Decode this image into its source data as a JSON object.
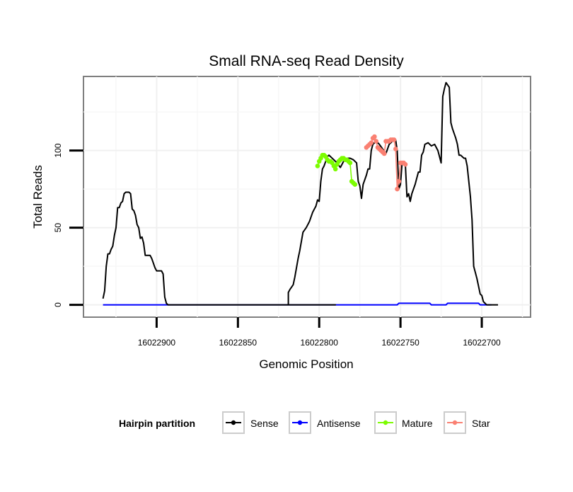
{
  "chart_data": {
    "type": "line",
    "title": "Small RNA-seq Read Density",
    "xlabel": "Genomic Position",
    "ylabel": "Total Reads",
    "x_reversed": true,
    "xlim": [
      16022945,
      16022670
    ],
    "ylim": [
      -8,
      148
    ],
    "x_ticks": [
      16022900,
      16022850,
      16022800,
      16022750,
      16022700
    ],
    "x_tick_labels": [
      "16022900",
      "16022850",
      "16022800",
      "16022750",
      "16022700"
    ],
    "y_ticks": [
      0,
      50,
      100
    ],
    "y_tick_labels": [
      "0",
      "50",
      "100"
    ],
    "grid": true,
    "legend": {
      "title": "Hairpin partition",
      "position": "bottom",
      "entries": [
        {
          "name": "Sense",
          "color": "#000000"
        },
        {
          "name": "Antisense",
          "color": "#0000ff"
        },
        {
          "name": "Mature",
          "color": "#7cfc00"
        },
        {
          "name": "Star",
          "color": "#fa8072"
        }
      ]
    },
    "series": [
      {
        "name": "Sense",
        "color": "#000000",
        "points": [
          [
            16022933,
            4
          ],
          [
            16022932,
            9
          ],
          [
            16022931,
            25
          ],
          [
            16022930,
            33
          ],
          [
            16022929,
            33
          ],
          [
            16022928,
            36
          ],
          [
            16022927,
            38
          ],
          [
            16022926,
            45
          ],
          [
            16022925,
            50
          ],
          [
            16022924,
            63
          ],
          [
            16022923,
            63
          ],
          [
            16022922,
            66
          ],
          [
            16022921,
            67
          ],
          [
            16022920,
            72
          ],
          [
            16022919,
            73
          ],
          [
            16022918,
            73
          ],
          [
            16022917,
            73
          ],
          [
            16022916,
            72
          ],
          [
            16022915,
            62
          ],
          [
            16022914,
            61
          ],
          [
            16022913,
            58
          ],
          [
            16022912,
            52
          ],
          [
            16022911,
            50
          ],
          [
            16022910,
            43
          ],
          [
            16022909,
            44
          ],
          [
            16022908,
            40
          ],
          [
            16022907,
            32
          ],
          [
            16022906,
            32
          ],
          [
            16022905,
            32
          ],
          [
            16022904,
            32
          ],
          [
            16022903,
            30
          ],
          [
            16022902,
            27
          ],
          [
            16022901,
            24
          ],
          [
            16022900,
            22
          ],
          [
            16022899,
            22
          ],
          [
            16022898,
            22
          ],
          [
            16022897,
            22
          ],
          [
            16022896,
            20
          ],
          [
            16022895,
            5
          ],
          [
            16022894,
            1
          ],
          [
            16022893,
            0
          ],
          [
            16022790,
            0
          ],
          [
            16022819,
            0
          ],
          [
            16022819,
            8
          ],
          [
            16022818,
            10
          ],
          [
            16022816,
            13
          ],
          [
            16022815,
            18
          ],
          [
            16022813,
            30
          ],
          [
            16022812,
            35
          ],
          [
            16022810,
            47
          ],
          [
            16022808,
            50
          ],
          [
            16022806,
            54
          ],
          [
            16022804,
            60
          ],
          [
            16022802,
            64
          ],
          [
            16022801,
            68
          ],
          [
            16022800,
            67
          ],
          [
            16022799,
            80
          ],
          [
            16022798,
            88
          ],
          [
            16022797,
            90
          ],
          [
            16022796,
            93
          ],
          [
            16022795,
            96
          ],
          [
            16022794,
            97
          ],
          [
            16022793,
            96
          ],
          [
            16022791,
            94
          ],
          [
            16022789,
            92
          ],
          [
            16022787,
            89
          ],
          [
            16022785,
            93
          ],
          [
            16022783,
            95
          ],
          [
            16022781,
            95
          ],
          [
            16022779,
            94
          ],
          [
            16022777,
            92
          ],
          [
            16022776,
            80
          ],
          [
            16022775,
            77
          ],
          [
            16022774,
            69
          ],
          [
            16022773,
            78
          ],
          [
            16022771,
            84
          ],
          [
            16022770,
            88
          ],
          [
            16022769,
            88
          ],
          [
            16022768,
            100
          ],
          [
            16022767,
            104
          ],
          [
            16022765,
            106
          ],
          [
            16022763,
            104
          ],
          [
            16022761,
            101
          ],
          [
            16022759,
            98
          ],
          [
            16022757,
            104
          ],
          [
            16022755,
            106
          ],
          [
            16022753,
            107
          ],
          [
            16022752,
            100
          ],
          [
            16022751,
            75
          ],
          [
            16022750,
            78
          ],
          [
            16022749,
            92
          ],
          [
            16022748,
            92
          ],
          [
            16022747,
            91
          ],
          [
            16022746,
            70
          ],
          [
            16022745,
            72
          ],
          [
            16022744,
            67
          ],
          [
            16022743,
            72
          ],
          [
            16022741,
            78
          ],
          [
            16022739,
            86
          ],
          [
            16022738,
            86
          ],
          [
            16022737,
            97
          ],
          [
            16022736,
            99
          ],
          [
            16022735,
            104
          ],
          [
            16022733,
            105
          ],
          [
            16022731,
            103
          ],
          [
            16022729,
            104
          ],
          [
            16022727,
            100
          ],
          [
            16022726,
            96
          ],
          [
            16022725,
            92
          ],
          [
            16022724,
            135
          ],
          [
            16022723,
            140
          ],
          [
            16022722,
            144
          ],
          [
            16022720,
            141
          ],
          [
            16022719,
            118
          ],
          [
            16022718,
            114
          ],
          [
            16022716,
            108
          ],
          [
            16022715,
            104
          ],
          [
            16022714,
            97
          ],
          [
            16022713,
            97
          ],
          [
            16022711,
            95
          ],
          [
            16022710,
            95
          ],
          [
            16022709,
            90
          ],
          [
            16022708,
            80
          ],
          [
            16022707,
            70
          ],
          [
            16022706,
            55
          ],
          [
            16022705,
            25
          ],
          [
            16022704,
            21
          ],
          [
            16022703,
            17
          ],
          [
            16022702,
            12
          ],
          [
            16022701,
            7
          ],
          [
            16022700,
            6
          ],
          [
            16022699,
            2
          ],
          [
            16022698,
            1
          ],
          [
            16022697,
            0
          ],
          [
            16022690,
            0
          ]
        ]
      },
      {
        "name": "Antisense",
        "color": "#0000ff",
        "points": [
          [
            16022933,
            0
          ],
          [
            16022752,
            0
          ],
          [
            16022751,
            1
          ],
          [
            16022732,
            1
          ],
          [
            16022731,
            0
          ],
          [
            16022722,
            0
          ],
          [
            16022721,
            1
          ],
          [
            16022702,
            1
          ],
          [
            16022701,
            0
          ],
          [
            16022694,
            0
          ]
        ]
      },
      {
        "name": "Mature",
        "color": "#7cfc00",
        "points": [
          [
            16022801,
            90
          ],
          [
            16022800,
            93
          ],
          [
            16022799,
            95
          ],
          [
            16022798,
            97
          ],
          [
            16022797,
            97
          ],
          [
            16022796,
            96
          ],
          [
            16022795,
            94
          ],
          [
            16022794,
            93
          ],
          [
            16022793,
            93
          ],
          [
            16022792,
            92
          ],
          [
            16022791,
            90
          ],
          [
            16022790,
            88
          ],
          [
            16022789,
            91
          ],
          [
            16022788,
            93
          ],
          [
            16022787,
            94
          ],
          [
            16022786,
            95
          ],
          [
            16022785,
            95
          ],
          [
            16022784,
            94
          ],
          [
            16022783,
            94
          ],
          [
            16022782,
            93
          ],
          [
            16022781,
            92
          ],
          [
            16022780,
            80
          ],
          [
            16022779,
            79
          ],
          [
            16022778,
            78
          ]
        ]
      },
      {
        "name": "Star",
        "color": "#fa8072",
        "points": [
          [
            16022771,
            102
          ],
          [
            16022770,
            103
          ],
          [
            16022769,
            104
          ],
          [
            16022768,
            105
          ],
          [
            16022767,
            108
          ],
          [
            16022766,
            109
          ],
          [
            16022765,
            106
          ],
          [
            16022764,
            102
          ],
          [
            16022763,
            101
          ],
          [
            16022762,
            100
          ],
          [
            16022761,
            99
          ],
          [
            16022760,
            98
          ],
          [
            16022759,
            106
          ],
          [
            16022758,
            106
          ],
          [
            16022757,
            106
          ],
          [
            16022756,
            107
          ],
          [
            16022755,
            107
          ],
          [
            16022754,
            107
          ],
          [
            16022753,
            101
          ],
          [
            16022752,
            75
          ],
          [
            16022751,
            80
          ],
          [
            16022750,
            92
          ],
          [
            16022749,
            92
          ],
          [
            16022748,
            92
          ],
          [
            16022747,
            91
          ]
        ]
      }
    ]
  }
}
